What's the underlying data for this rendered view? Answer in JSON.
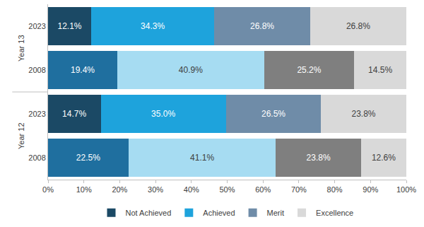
{
  "chart_data": {
    "type": "bar",
    "orientation": "horizontal",
    "stacked": true,
    "data_labels": true,
    "grid": false,
    "legend": "bottom",
    "categories": [
      "2023",
      "2008",
      "2023",
      "2008"
    ],
    "groups": [
      "Year 13",
      "Year 13",
      "Year 12",
      "Year 12"
    ],
    "xlim": [
      0,
      100
    ],
    "xticks": [
      {
        "value": 0,
        "label": "0%"
      },
      {
        "value": 10,
        "label": "10%"
      },
      {
        "value": 20,
        "label": "20%"
      },
      {
        "value": 30,
        "label": "30%"
      },
      {
        "value": 40,
        "label": "40%"
      },
      {
        "value": 50,
        "label": "50%"
      },
      {
        "value": 60,
        "label": "60%"
      },
      {
        "value": 70,
        "label": "70%"
      },
      {
        "value": 80,
        "label": "80%"
      },
      {
        "value": 90,
        "label": "90%"
      },
      {
        "value": 100,
        "label": "100%"
      }
    ],
    "series": [
      {
        "name": "Not Achieved",
        "colors": [
          "#1b4965",
          "#1f6f9f",
          "#1b4965",
          "#1f6f9f"
        ],
        "values": [
          12.1,
          19.4,
          14.7,
          22.5
        ],
        "value_labels": [
          "12.1%",
          "19.4%",
          "14.7%",
          "22.5%"
        ]
      },
      {
        "name": "Achieved",
        "colors": [
          "#1ea3dc",
          "#a6dcf2",
          "#1ea3dc",
          "#a6dcf2"
        ],
        "values": [
          34.3,
          40.9,
          35.0,
          41.1
        ],
        "value_labels": [
          "34.3%",
          "40.9%",
          "35.0%",
          "41.1%"
        ]
      },
      {
        "name": "Merit",
        "colors": [
          "#6f8ca8",
          "#7f7f7f",
          "#6f8ca8",
          "#7f7f7f"
        ],
        "values": [
          26.8,
          25.2,
          26.5,
          23.8
        ],
        "value_labels": [
          "26.8%",
          "25.2%",
          "26.5%",
          "23.8%"
        ]
      },
      {
        "name": "Excellence",
        "colors": [
          "#d9d9d9",
          "#d9d9d9",
          "#d9d9d9",
          "#d9d9d9"
        ],
        "values": [
          26.8,
          14.5,
          23.8,
          12.6
        ],
        "value_labels": [
          "26.8%",
          "14.5%",
          "23.8%",
          "12.6%"
        ]
      }
    ]
  }
}
